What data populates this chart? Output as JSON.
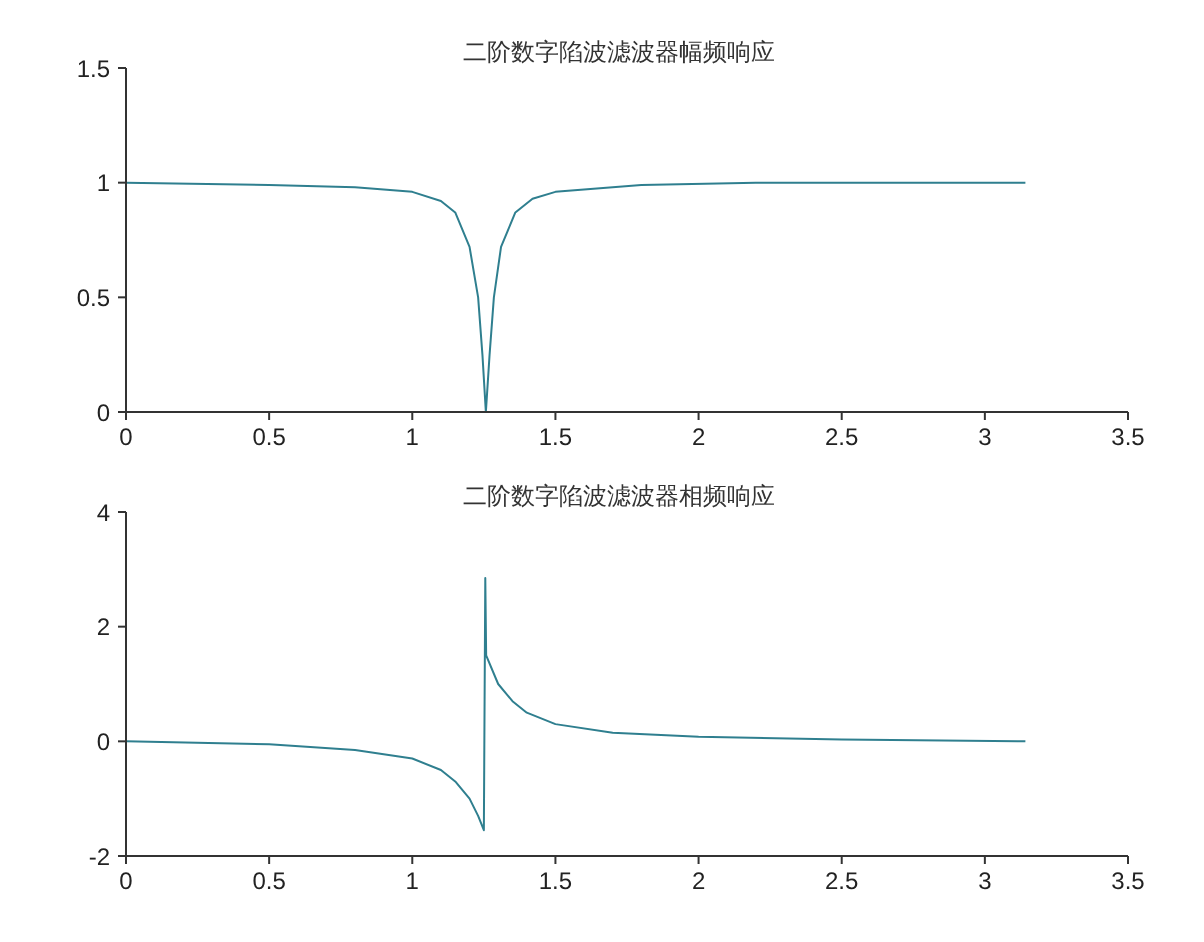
{
  "chart_data": [
    {
      "type": "line",
      "title": "二阶数字陷波滤波器幅频响应",
      "xlim": [
        0,
        3.5
      ],
      "xticks": [
        0,
        0.5,
        1,
        1.5,
        2,
        2.5,
        3,
        3.5
      ],
      "ylim": [
        0,
        1.5
      ],
      "yticks": [
        0,
        0.5,
        1,
        1.5
      ],
      "grid": false,
      "legend": false,
      "marker": "none",
      "line_style": "solid",
      "series": [
        {
          "color": "#2f7f8f",
          "x": [
            0,
            0.5,
            0.8,
            1.0,
            1.1,
            1.15,
            1.2,
            1.23,
            1.245,
            1.257,
            1.27,
            1.285,
            1.31,
            1.36,
            1.42,
            1.5,
            1.8,
            2.2,
            3.1416
          ],
          "values": [
            1,
            0.99,
            0.98,
            0.96,
            0.92,
            0.87,
            0.72,
            0.5,
            0.25,
            0,
            0.25,
            0.5,
            0.72,
            0.87,
            0.93,
            0.96,
            0.99,
            1,
            1
          ]
        }
      ]
    },
    {
      "type": "line",
      "title": "二阶数字陷波滤波器相频响应",
      "xlim": [
        0,
        3.5
      ],
      "xticks": [
        0,
        0.5,
        1,
        1.5,
        2,
        2.5,
        3,
        3.5
      ],
      "ylim": [
        -2,
        4
      ],
      "yticks": [
        -2,
        0,
        2,
        4
      ],
      "grid": false,
      "legend": false,
      "marker": "none",
      "line_style": "solid",
      "series": [
        {
          "color": "#2f7f8f",
          "x": [
            0,
            0.5,
            0.8,
            1.0,
            1.1,
            1.15,
            1.2,
            1.23,
            1.25,
            1.255,
            1.258,
            1.3,
            1.35,
            1.4,
            1.5,
            1.7,
            2.0,
            2.5,
            3.1416
          ],
          "values": [
            0,
            -0.05,
            -0.15,
            -0.3,
            -0.5,
            -0.7,
            -1.0,
            -1.3,
            -1.55,
            2.85,
            1.5,
            1.0,
            0.7,
            0.5,
            0.3,
            0.15,
            0.08,
            0.03,
            0
          ]
        }
      ]
    }
  ]
}
